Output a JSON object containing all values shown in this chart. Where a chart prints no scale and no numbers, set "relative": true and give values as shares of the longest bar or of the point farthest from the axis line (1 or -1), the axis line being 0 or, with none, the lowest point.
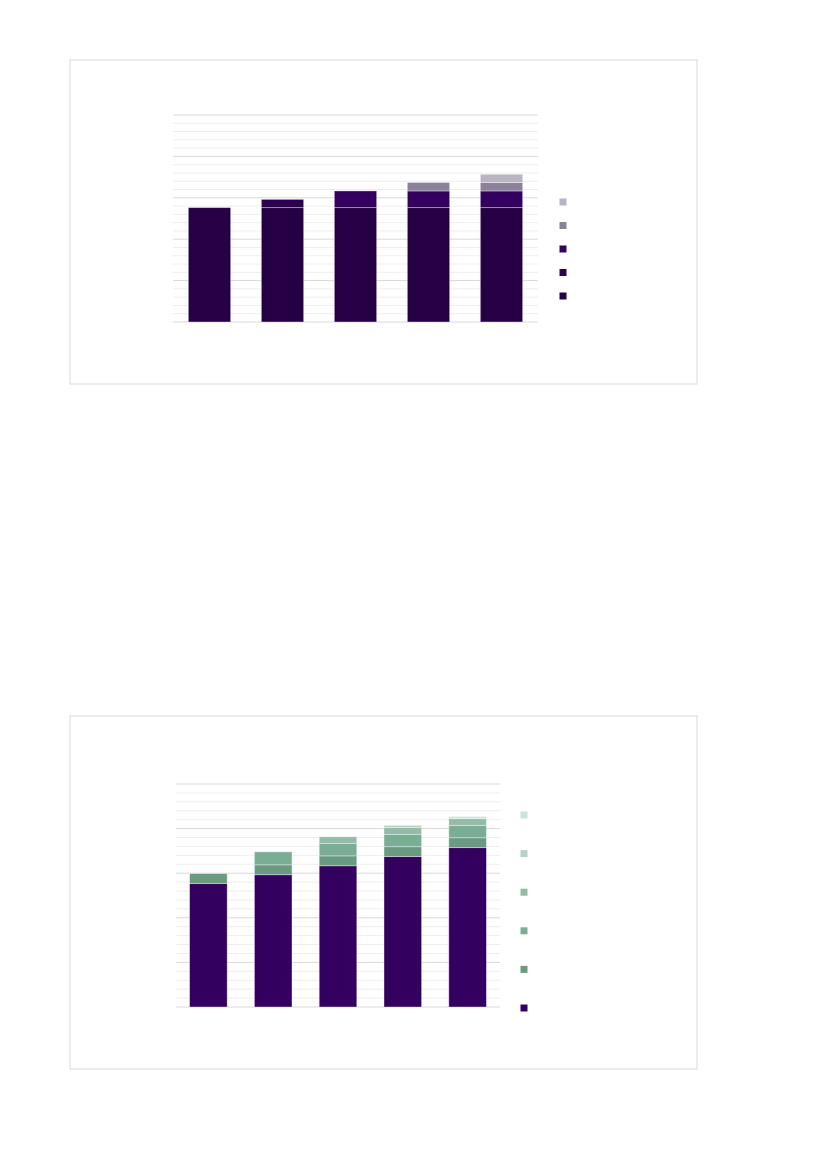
{
  "chart_data": [
    {
      "type": "bar",
      "stacked": true,
      "relative": true,
      "grid": true,
      "categories": [
        null,
        null,
        null,
        null,
        null
      ],
      "series": [
        {
          "color": "#250044",
          "values": [
            0.774,
            0.774,
            0.774,
            0.774,
            0.774
          ]
        },
        {
          "color": "#2b004e",
          "values": [
            0,
            0.056,
            0,
            0,
            0
          ]
        },
        {
          "color": "#330060",
          "values": [
            0,
            0,
            0.113,
            0.113,
            0.113
          ]
        },
        {
          "color": "#8a8299",
          "values": [
            0,
            0,
            0,
            0.057,
            0.057
          ]
        },
        {
          "color": "#b8b4c2",
          "values": [
            0,
            0,
            0,
            0,
            0.056
          ]
        }
      ]
    },
    {
      "type": "bar",
      "stacked": true,
      "relative": true,
      "grid": true,
      "categories": [
        null,
        null,
        null,
        null,
        null
      ],
      "series": [
        {
          "color": "#330060",
          "values": [
            0.648,
            0.694,
            0.741,
            0.789,
            0.836
          ]
        },
        {
          "color": "#6b9a83",
          "values": [
            0.052,
            0.052,
            0.052,
            0.052,
            0.052
          ]
        },
        {
          "color": "#7aae94",
          "values": [
            0,
            0.068,
            0.065,
            0.065,
            0.065
          ]
        },
        {
          "color": "#93bba7",
          "values": [
            0,
            0,
            0.035,
            0.035,
            0.035
          ]
        },
        {
          "color": "#b5d2c4",
          "values": [
            0,
            0,
            0,
            0.012,
            0
          ]
        },
        {
          "color": "#cfe2d9",
          "values": [
            0,
            0,
            0,
            0,
            0.012
          ]
        }
      ]
    }
  ]
}
